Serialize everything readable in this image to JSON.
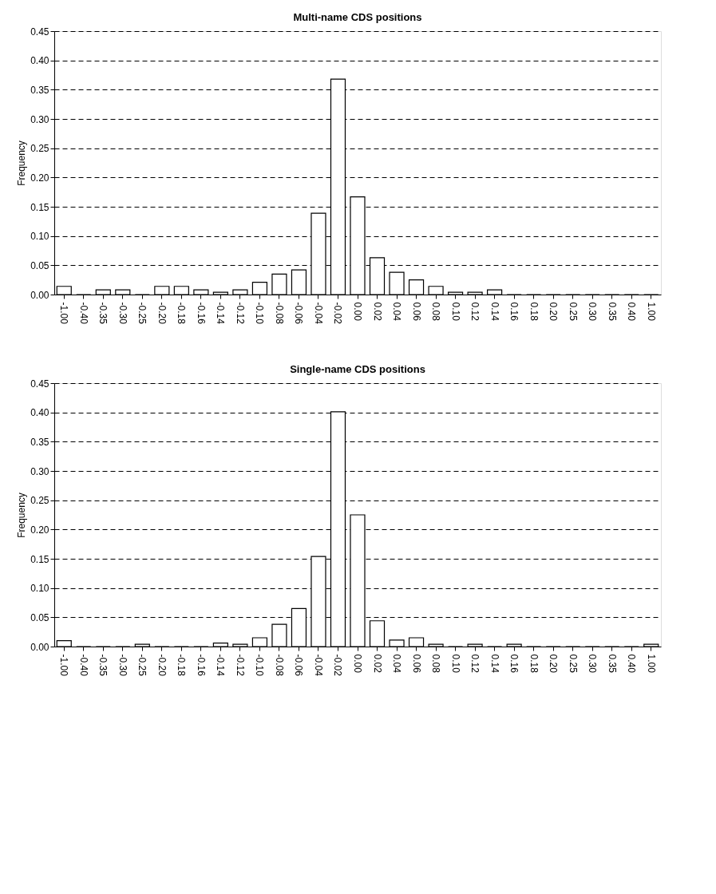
{
  "chart_data": [
    {
      "type": "bar",
      "title": "Multi-name CDS positions",
      "ylabel": "Frequency",
      "categories": [
        "-1.00",
        "-0.40",
        "-0.35",
        "-0.30",
        "-0.25",
        "-0.20",
        "-0.18",
        "-0.16",
        "-0.14",
        "-0.12",
        "-0.10",
        "-0.08",
        "-0.06",
        "-0.04",
        "-0.02",
        "0.00",
        "0.02",
        "0.04",
        "0.06",
        "0.08",
        "0.10",
        "0.12",
        "0.14",
        "0.16",
        "0.18",
        "0.20",
        "0.25",
        "0.30",
        "0.35",
        "0.40",
        "1.00"
      ],
      "values": [
        0.014,
        0,
        0.008,
        0.008,
        0,
        0.014,
        0.014,
        0.008,
        0.004,
        0.008,
        0.021,
        0.035,
        0.042,
        0.139,
        0.368,
        0.167,
        0.063,
        0.038,
        0.025,
        0.014,
        0.004,
        0.004,
        0.008,
        0,
        0,
        0,
        0,
        0,
        0,
        0,
        0
      ],
      "color": "#ffffff",
      "ylim": [
        0,
        0.45
      ],
      "yticks": [
        {
          "value": 0,
          "label": "0.00"
        },
        0.05,
        {
          "value": 0.1,
          "label": "0.10"
        },
        0.15,
        {
          "value": 0.2,
          "label": "0.20"
        },
        0.25,
        {
          "value": 0.3,
          "label": "0.30"
        },
        0.35,
        {
          "value": 0.4,
          "label": "0.40"
        },
        0.45
      ],
      "grid": "y",
      "line_style": "dashed"
    },
    {
      "type": "bar",
      "title": "Single-name CDS positions",
      "ylabel": "Frequency",
      "categories": [
        "-1.00",
        "-0.40",
        "-0.35",
        "-0.30",
        "-0.25",
        "-0.20",
        "-0.18",
        "-0.16",
        "-0.14",
        "-0.12",
        "-0.10",
        "-0.08",
        "-0.06",
        "-0.04",
        "-0.02",
        "0.00",
        "0.02",
        "0.04",
        "0.06",
        "0.08",
        "0.10",
        "0.12",
        "0.14",
        "0.16",
        "0.18",
        "0.20",
        "0.25",
        "0.30",
        "0.35",
        "0.40",
        "1.00"
      ],
      "values": [
        0.01,
        0,
        0,
        0,
        0.004,
        0,
        0,
        0,
        0.006,
        0.004,
        0.015,
        0.038,
        0.065,
        0.154,
        0.401,
        0.225,
        0.044,
        0.011,
        0.015,
        0.004,
        0,
        0.004,
        0,
        0.004,
        0,
        0,
        0,
        0,
        0,
        0,
        0.004
      ],
      "color": "#ffffff",
      "ylim": [
        0,
        0.45
      ],
      "yticks": [
        {
          "value": 0,
          "label": "0.00"
        },
        0.05,
        {
          "value": 0.1,
          "label": "0.10"
        },
        0.15,
        {
          "value": 0.2,
          "label": "0.20"
        },
        0.25,
        {
          "value": 0.3,
          "label": "0.30"
        },
        0.35,
        {
          "value": 0.4,
          "label": "0.40"
        },
        0.45
      ],
      "grid": "y",
      "line_style": "dashed"
    }
  ]
}
